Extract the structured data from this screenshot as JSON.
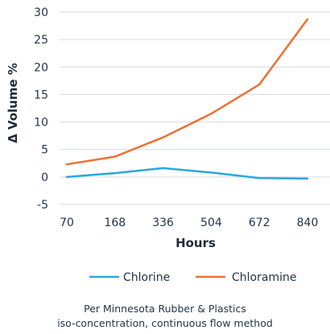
{
  "chart_data": {
    "type": "line",
    "xlabel": "Hours",
    "ylabel": "Δ Volume %",
    "categories": [
      "70",
      "168",
      "336",
      "504",
      "672",
      "840"
    ],
    "ylim": [
      -5,
      30
    ],
    "yticks": [
      -5,
      0,
      5,
      10,
      15,
      20,
      25,
      30
    ],
    "grid": "horizontal",
    "legend_position": "bottom",
    "series": [
      {
        "name": "Chlorine",
        "color": "#2aa7df",
        "values": [
          0.0,
          0.7,
          1.6,
          0.8,
          -0.2,
          -0.3
        ]
      },
      {
        "name": "Chloramine",
        "color": "#ee7034",
        "values": [
          2.3,
          3.7,
          7.2,
          11.5,
          16.8,
          28.7
        ]
      }
    ]
  },
  "caption": {
    "line1": "Per Minnesota Rubber & Plastics",
    "line2": "iso-concentration, continuous flow method"
  }
}
